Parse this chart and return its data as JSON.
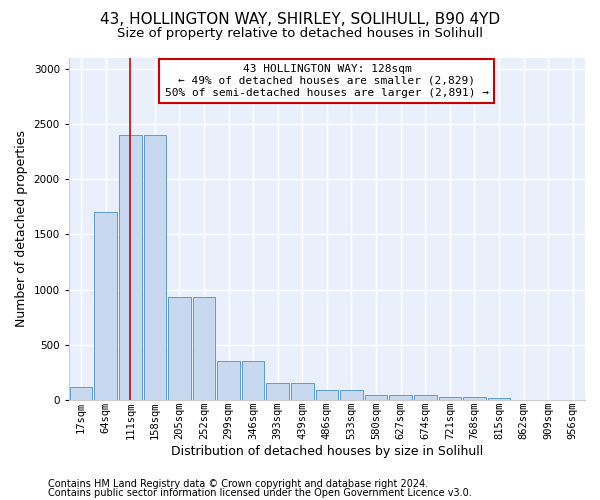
{
  "title1": "43, HOLLINGTON WAY, SHIRLEY, SOLIHULL, B90 4YD",
  "title2": "Size of property relative to detached houses in Solihull",
  "xlabel": "Distribution of detached houses by size in Solihull",
  "ylabel": "Number of detached properties",
  "bar_heights": [
    115,
    1700,
    2400,
    2400,
    930,
    930,
    350,
    350,
    150,
    150,
    90,
    90,
    50,
    50,
    50,
    30,
    30,
    20,
    5,
    5,
    5
  ],
  "categories": [
    "17sqm",
    "64sqm",
    "111sqm",
    "158sqm",
    "205sqm",
    "252sqm",
    "299sqm",
    "346sqm",
    "393sqm",
    "439sqm",
    "486sqm",
    "533sqm",
    "580sqm",
    "627sqm",
    "674sqm",
    "721sqm",
    "768sqm",
    "815sqm",
    "862sqm",
    "909sqm",
    "956sqm"
  ],
  "bar_color": "#c8d9ef",
  "bar_edge_color": "#5b9bd5",
  "red_line_x": 2,
  "ylim": [
    0,
    3100
  ],
  "yticks": [
    0,
    500,
    1000,
    1500,
    2000,
    2500,
    3000
  ],
  "annotation_text_line1": "43 HOLLINGTON WAY: 128sqm",
  "annotation_text_line2": "← 49% of detached houses are smaller (2,829)",
  "annotation_text_line3": "50% of semi-detached houses are larger (2,891) →",
  "footer_line1": "Contains HM Land Registry data © Crown copyright and database right 2024.",
  "footer_line2": "Contains public sector information licensed under the Open Government Licence v3.0.",
  "bg_color": "#ffffff",
  "plot_bg_color": "#eaf0fb",
  "grid_color": "#ffffff",
  "title1_fontsize": 11,
  "title2_fontsize": 9.5,
  "axis_label_fontsize": 9,
  "tick_fontsize": 7.5,
  "annotation_fontsize": 8,
  "footer_fontsize": 7
}
